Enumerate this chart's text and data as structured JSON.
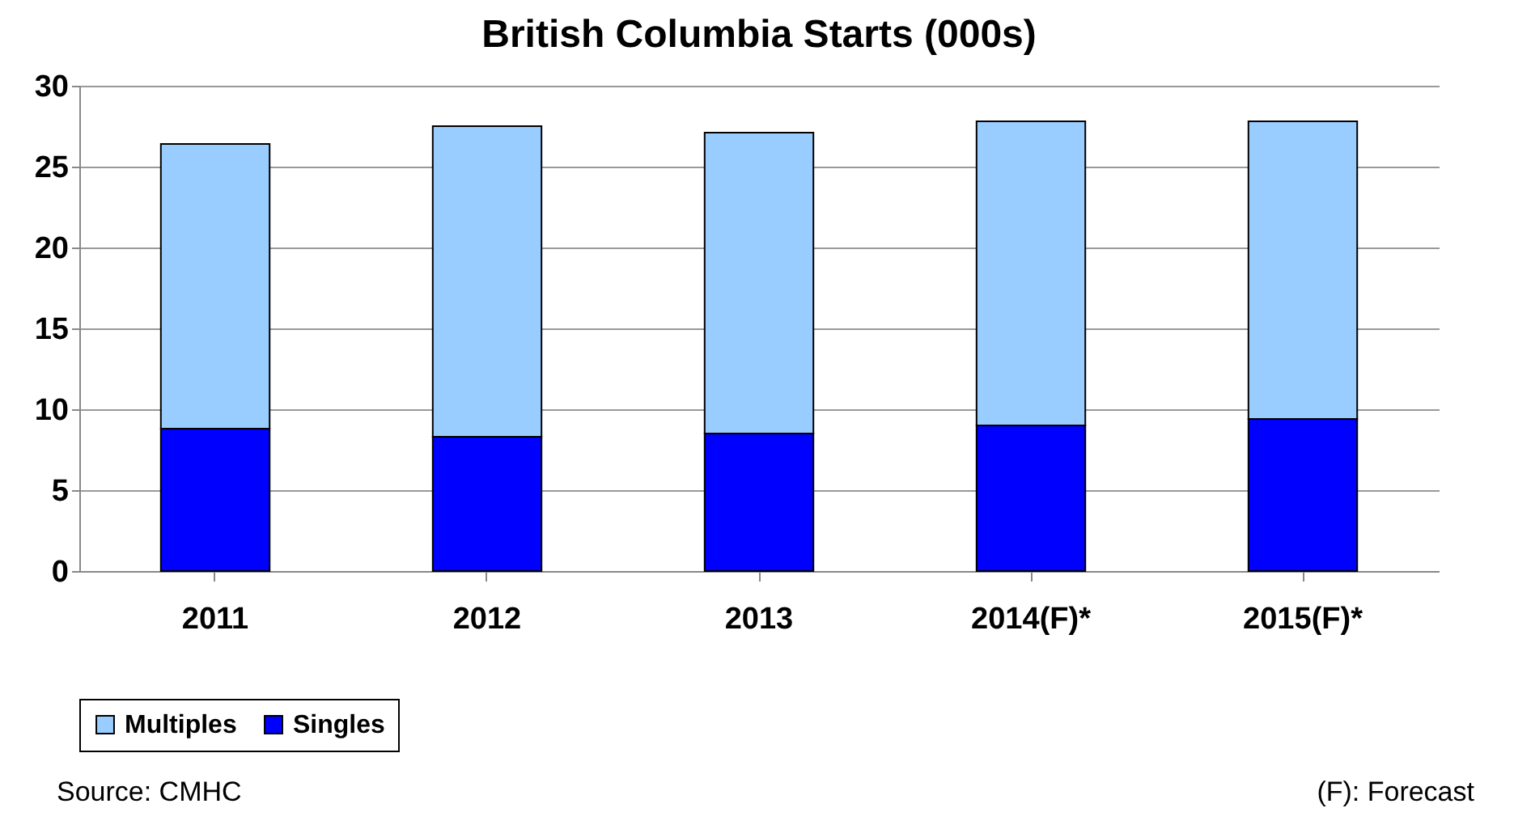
{
  "chart_data": {
    "type": "bar",
    "title": "British Columbia Starts (000s)",
    "categories": [
      "2011",
      "2012",
      "2013",
      "2014(F)*",
      "2015(F)*"
    ],
    "series": [
      {
        "name": "Singles",
        "color": "#0000ff",
        "values": [
          8.8,
          8.3,
          8.5,
          9.0,
          9.4
        ]
      },
      {
        "name": "Multiples",
        "color": "#99ccff",
        "values": [
          17.6,
          19.2,
          18.6,
          18.8,
          18.4
        ]
      }
    ],
    "stacked": true,
    "ylim": [
      0,
      30
    ],
    "yticks": [
      0,
      5,
      10,
      15,
      20,
      25,
      30
    ],
    "grid": "y",
    "legend": "bottom",
    "annotations": [
      "Source: CMHC",
      "(F): Forecast"
    ]
  }
}
